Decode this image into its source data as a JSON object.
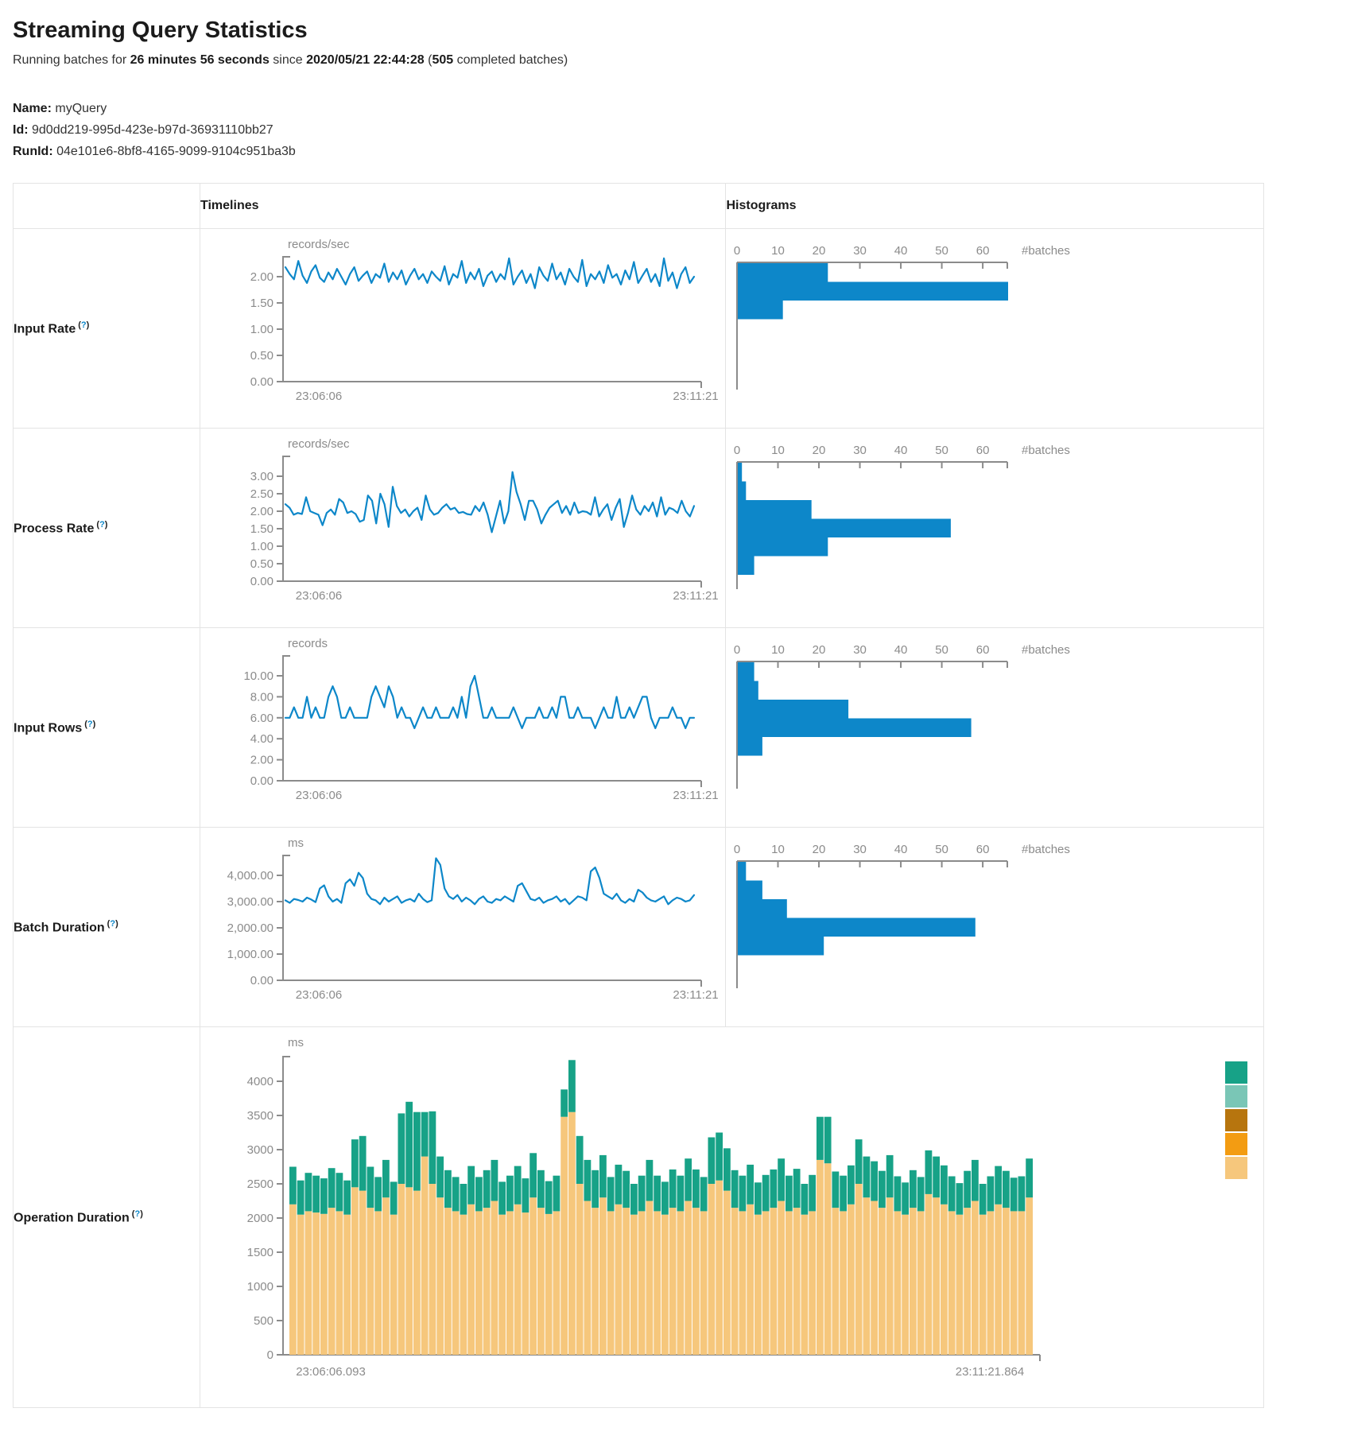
{
  "page": {
    "title": "Streaming Query Statistics"
  },
  "summary": {
    "prefix": "Running batches for ",
    "duration": "26 minutes 56 seconds",
    "since_word": " since ",
    "since_time": "2020/05/21 22:44:28",
    "open": " (",
    "count": "505",
    "suffix": " completed batches)"
  },
  "meta": {
    "name_label": "Name:",
    "name": "myQuery",
    "id_label": "Id:",
    "id": "9d0dd219-995d-423e-b97d-36931110bb27",
    "runid_label": "RunId:",
    "runid": "04e101e6-8bf8-4165-9099-9104c951ba3b"
  },
  "table": {
    "col_timelines": "Timelines",
    "col_histograms": "Histograms"
  },
  "help": {
    "open": "(",
    "q": "?",
    "close": ")"
  },
  "colors": {
    "line": "#0d87c9",
    "hist_bar": "#0d87c9",
    "axis": "#8b8b8b",
    "tick_text": "#8b8b8b",
    "stack_bottom": "#f6c77c",
    "stack_top": "#17a287",
    "legend": [
      "#17a287",
      "#7ac6b6",
      "#b7750e",
      "#f39c12",
      "#f6c77c"
    ],
    "help": "#0d87c9",
    "border": "#e4e4e4"
  },
  "chart_data": [
    {
      "metric": "Input Rate",
      "timeline": {
        "type": "line",
        "unit": "records/sec",
        "y_tick_labels": [
          "0.00",
          "0.50",
          "1.00",
          "1.50",
          "2.00"
        ],
        "y_max_tick": 2,
        "x_start": "23:06:06",
        "x_end": "23:11:21",
        "values": [
          2.18,
          2.05,
          1.95,
          2.3,
          2.02,
          1.88,
          2.1,
          2.22,
          1.98,
          1.9,
          2.08,
          1.95,
          2.15,
          2.0,
          1.85,
          2.05,
          2.18,
          1.92,
          2.02,
          2.1,
          1.88,
          2.05,
          1.98,
          2.25,
          1.9,
          2.08,
          1.95,
          2.12,
          1.85,
          2.02,
          2.15,
          1.95,
          2.05,
          1.88,
          2.1,
          2.0,
          1.92,
          2.2,
          1.85,
          2.05,
          1.98,
          2.3,
          1.88,
          2.08,
          1.95,
          2.15,
          1.82,
          2.02,
          2.1,
          1.9,
          2.05,
          1.95,
          2.35,
          1.85,
          2.0,
          2.12,
          1.88,
          2.05,
          1.78,
          2.18,
          2.02,
          1.92,
          2.25,
          1.95,
          2.08,
          1.85,
          2.15,
          2.0,
          1.9,
          2.32,
          1.82,
          2.05,
          1.95,
          2.1,
          1.88,
          2.22,
          1.98,
          2.05,
          1.85,
          2.12,
          1.95,
          2.28,
          1.88,
          2.02,
          2.15,
          1.9,
          2.05,
          1.82,
          2.35,
          1.92,
          2.08,
          1.78,
          2.05,
          2.18,
          1.88,
          2.0
        ]
      },
      "histogram": {
        "type": "bar-horizontal",
        "x_tick_labels": [
          "0",
          "10",
          "20",
          "30",
          "40",
          "50",
          "60"
        ],
        "axis_max": 66,
        "count_label": "#batches",
        "values": [
          22,
          66,
          11
        ]
      }
    },
    {
      "metric": "Process Rate",
      "timeline": {
        "type": "line",
        "unit": "records/sec",
        "y_tick_labels": [
          "0.00",
          "0.50",
          "1.00",
          "1.50",
          "2.00",
          "2.50",
          "3.00"
        ],
        "y_max_tick": 3,
        "x_start": "23:06:06",
        "x_end": "23:11:21",
        "values": [
          2.2,
          2.1,
          1.9,
          1.95,
          1.92,
          2.4,
          2.0,
          1.95,
          1.9,
          1.6,
          1.95,
          2.05,
          1.9,
          2.35,
          2.25,
          1.95,
          2.0,
          1.92,
          1.7,
          1.75,
          2.45,
          2.3,
          1.65,
          2.5,
          2.2,
          1.55,
          2.7,
          2.15,
          1.95,
          2.05,
          1.85,
          2.0,
          2.1,
          1.75,
          2.45,
          2.05,
          1.9,
          1.95,
          2.1,
          2.2,
          2.05,
          2.1,
          1.95,
          1.98,
          1.92,
          1.9,
          2.15,
          2.0,
          2.25,
          1.9,
          1.4,
          1.85,
          2.3,
          1.65,
          2.0,
          3.12,
          2.55,
          2.2,
          1.75,
          2.3,
          2.3,
          2.05,
          1.65,
          1.9,
          2.1,
          2.2,
          2.3,
          1.95,
          2.15,
          1.9,
          2.25,
          1.95,
          2.0,
          1.98,
          1.9,
          2.4,
          1.85,
          2.05,
          2.2,
          1.75,
          2.1,
          2.35,
          1.55,
          1.95,
          2.45,
          2.05,
          1.9,
          2.15,
          2.0,
          2.25,
          1.85,
          2.4,
          1.9,
          2.1,
          2.05,
          1.95,
          2.3,
          2.0,
          1.85,
          2.15
        ]
      },
      "histogram": {
        "type": "bar-horizontal",
        "x_tick_labels": [
          "0",
          "10",
          "20",
          "30",
          "40",
          "50",
          "60"
        ],
        "axis_max": 66,
        "count_label": "#batches",
        "values": [
          1,
          2,
          18,
          52,
          22,
          4
        ]
      }
    },
    {
      "metric": "Input Rows",
      "timeline": {
        "type": "line",
        "unit": "records",
        "y_tick_labels": [
          "0.00",
          "2.00",
          "4.00",
          "6.00",
          "8.00",
          "10.00"
        ],
        "y_max_tick": 10,
        "x_start": "23:06:06",
        "x_end": "23:11:21",
        "values": [
          6,
          6,
          7,
          6,
          6,
          8,
          6,
          7,
          6,
          6,
          8,
          9,
          8,
          6,
          6,
          7,
          6,
          6,
          6,
          6,
          8,
          9,
          8,
          7,
          9,
          8,
          6,
          7,
          6,
          6,
          5,
          6,
          7,
          6,
          6,
          7,
          6,
          6,
          6,
          7,
          6,
          8,
          6,
          9,
          10,
          8,
          6,
          6,
          7,
          6,
          6,
          6,
          6,
          7,
          6,
          5,
          6,
          6,
          6,
          7,
          6,
          6,
          7,
          6,
          8,
          8,
          6,
          6,
          7,
          6,
          6,
          6,
          5,
          6,
          7,
          6,
          6,
          8,
          6,
          6,
          7,
          6,
          7,
          8,
          8,
          6,
          5,
          6,
          6,
          6,
          7,
          6,
          6,
          5,
          6,
          6
        ]
      },
      "histogram": {
        "type": "bar-horizontal",
        "x_tick_labels": [
          "0",
          "10",
          "20",
          "30",
          "40",
          "50",
          "60"
        ],
        "axis_max": 66,
        "count_label": "#batches",
        "values": [
          4,
          5,
          27,
          57,
          6
        ]
      }
    },
    {
      "metric": "Batch Duration",
      "timeline": {
        "type": "line",
        "unit": "ms",
        "y_tick_labels": [
          "0.00",
          "1,000.00",
          "2,000.00",
          "3,000.00",
          "4,000.00"
        ],
        "y_max_tick": 4000,
        "x_start": "23:06:06",
        "x_end": "23:11:21",
        "values": [
          3050,
          2950,
          3100,
          3060,
          3000,
          3150,
          3080,
          2980,
          3500,
          3620,
          3200,
          3000,
          3100,
          2950,
          3700,
          3850,
          3600,
          4100,
          3900,
          3300,
          3100,
          3050,
          2900,
          3150,
          3000,
          3100,
          3200,
          2950,
          3050,
          3100,
          3000,
          3300,
          3100,
          2980,
          3050,
          4650,
          4400,
          3500,
          3200,
          3100,
          3250,
          3000,
          3150,
          3050,
          2900,
          3100,
          3200,
          3000,
          2950,
          3100,
          3050,
          3200,
          3100,
          3000,
          3600,
          3700,
          3400,
          3100,
          3050,
          3150,
          2950,
          3050,
          3100,
          3200,
          3000,
          3100,
          2900,
          3050,
          3200,
          3150,
          3050,
          4150,
          4300,
          3900,
          3300,
          3200,
          3100,
          3300,
          3050,
          2950,
          3100,
          3000,
          3450,
          3350,
          3150,
          3050,
          3000,
          3100,
          3200,
          2900,
          3050,
          3150,
          3100,
          3000,
          3050,
          3250
        ]
      },
      "histogram": {
        "type": "bar-horizontal",
        "x_tick_labels": [
          "0",
          "10",
          "20",
          "30",
          "40",
          "50",
          "60"
        ],
        "axis_max": 66,
        "count_label": "#batches",
        "values": [
          2,
          6,
          12,
          58,
          21
        ]
      }
    },
    {
      "metric": "Operation Duration",
      "timeline": {
        "type": "stacked-bar",
        "unit": "ms",
        "y_tick_labels": [
          "0",
          "500",
          "1000",
          "1500",
          "2000",
          "2500",
          "3000",
          "3500",
          "4000"
        ],
        "y_tick_step": 500,
        "x_start": "23:06:06.093",
        "x_end": "23:11:21.864",
        "series": [
          {
            "name": "series-1",
            "color": "#f6c77c",
            "values": [
              2200,
              2050,
              2100,
              2080,
              2060,
              2150,
              2100,
              2050,
              2450,
              2400,
              2150,
              2100,
              2300,
              2050,
              2500,
              2450,
              2400,
              2900,
              2500,
              2300,
              2150,
              2100,
              2050,
              2200,
              2100,
              2150,
              2250,
              2050,
              2100,
              2200,
              2080,
              2300,
              2150,
              2060,
              2100,
              3480,
              3550,
              2500,
              2250,
              2150,
              2300,
              2100,
              2200,
              2150,
              2050,
              2100,
              2250,
              2100,
              2050,
              2150,
              2100,
              2250,
              2150,
              2100,
              2500,
              2550,
              2400,
              2150,
              2100,
              2200,
              2050,
              2100,
              2150,
              2250,
              2100,
              2150,
              2050,
              2100,
              2850,
              2800,
              2150,
              2100,
              2200,
              2500,
              2300,
              2250,
              2150,
              2300,
              2100,
              2050,
              2150,
              2100,
              2350,
              2300,
              2200,
              2100,
              2050,
              2150,
              2250,
              2050,
              2100,
              2200,
              2150,
              2100,
              2100,
              2300
            ]
          },
          {
            "name": "series-2",
            "color": "#17a287",
            "values": [
              550,
              500,
              560,
              540,
              520,
              580,
              560,
              500,
              700,
              800,
              600,
              500,
              550,
              480,
              1030,
              1250,
              1150,
              650,
              1060,
              600,
              550,
              500,
              450,
              560,
              500,
              550,
              600,
              480,
              520,
              560,
              500,
              650,
              550,
              480,
              520,
              400,
              760,
              700,
              600,
              550,
              620,
              500,
              580,
              540,
              450,
              520,
              600,
              520,
              480,
              560,
              520,
              620,
              560,
              500,
              680,
              700,
              620,
              550,
              520,
              580,
              470,
              530,
              560,
              620,
              520,
              570,
              450,
              530,
              630,
              680,
              530,
              520,
              570,
              650,
              600,
              580,
              540,
              620,
              510,
              470,
              550,
              500,
              640,
              600,
              570,
              510,
              460,
              540,
              600,
              450,
              510,
              560,
              540,
              490,
              510,
              570
            ]
          }
        ]
      },
      "legend_swatches": [
        "#17a287",
        "#7ac6b6",
        "#b7750e",
        "#f39c12",
        "#f6c77c"
      ]
    }
  ]
}
